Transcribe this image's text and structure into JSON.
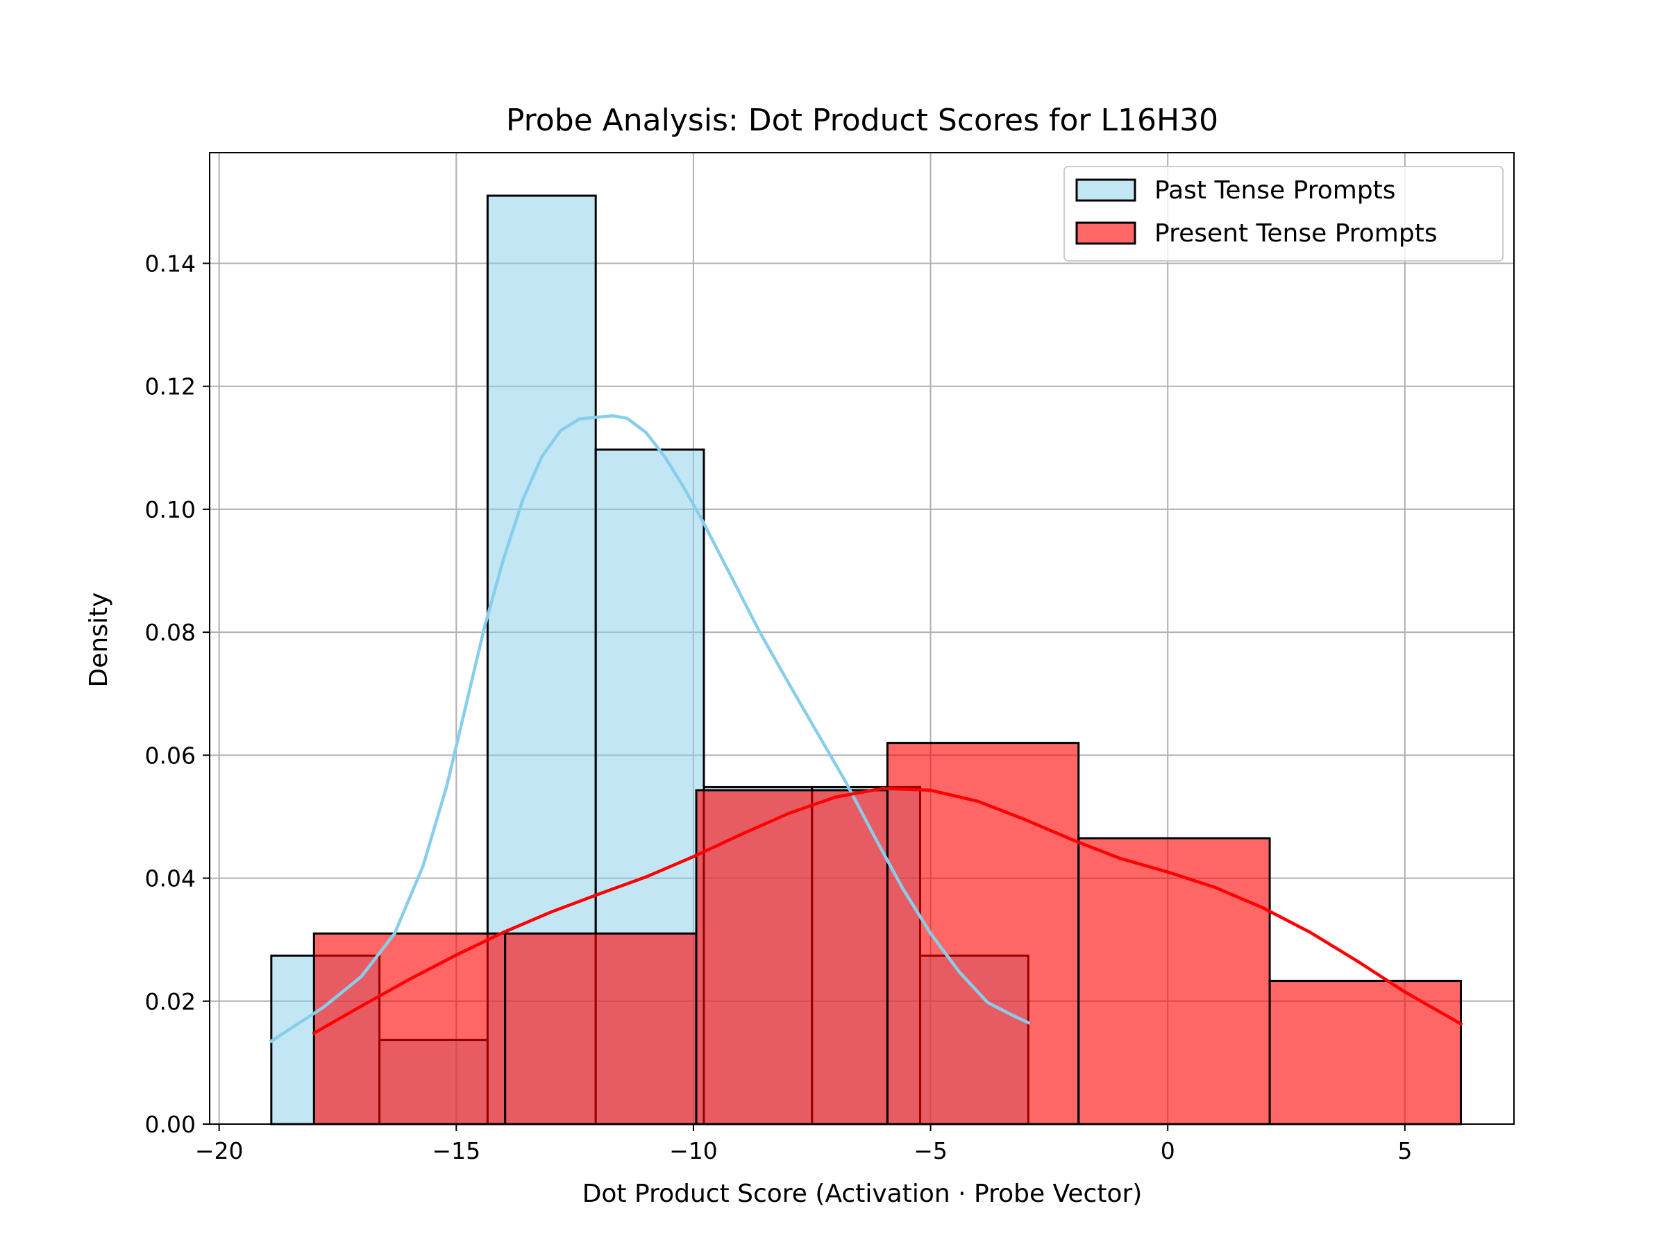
{
  "chart_data": {
    "type": "histogram",
    "title": "Probe Analysis: Dot Product Scores for L16H30",
    "xlabel": "Dot Product Score (Activation · Probe Vector)",
    "ylabel": "Density",
    "xlim": [
      -20.2,
      7.3
    ],
    "ylim": [
      0,
      0.158
    ],
    "xticks": [
      -20,
      -15,
      -10,
      -5,
      0,
      5
    ],
    "xtick_labels": [
      "−20",
      "−15",
      "−10",
      "−5",
      "0",
      "5"
    ],
    "yticks": [
      0,
      0.02,
      0.04,
      0.06,
      0.08,
      0.1,
      0.12,
      0.14
    ],
    "ytick_labels": [
      "0.00",
      "0.02",
      "0.04",
      "0.06",
      "0.08",
      "0.10",
      "0.12",
      "0.14"
    ],
    "grid": true,
    "legend_position": "top-right",
    "series": [
      {
        "name": "Past Tense Prompts",
        "fill_color": "#87ceeb",
        "fill_opacity": 0.5,
        "line_color": "#87ceeb",
        "bin_edges": [
          -18.9,
          -16.62,
          -14.34,
          -12.06,
          -9.78,
          -7.5,
          -5.22,
          -2.94
        ],
        "densities": [
          0.0274,
          0.0137,
          0.151,
          0.1097,
          0.0548,
          0.0548,
          0.0274
        ],
        "kde": {
          "x": [
            -18.9,
            -17.8,
            -17.0,
            -16.3,
            -15.7,
            -15.2,
            -14.8,
            -14.4,
            -14.0,
            -13.6,
            -13.2,
            -12.8,
            -12.4,
            -12.0,
            -11.7,
            -11.4,
            -11.0,
            -10.6,
            -10.2,
            -9.8,
            -9.2,
            -8.6,
            -8.0,
            -7.4,
            -6.8,
            -6.2,
            -5.6,
            -5.0,
            -4.4,
            -3.8,
            -3.3,
            -2.94
          ],
          "y": [
            0.0135,
            0.019,
            0.024,
            0.031,
            0.042,
            0.055,
            0.068,
            0.081,
            0.092,
            0.1015,
            0.1085,
            0.1128,
            0.1147,
            0.115,
            0.1152,
            0.1148,
            0.1125,
            0.1085,
            0.1035,
            0.098,
            0.089,
            0.08,
            0.0718,
            0.0638,
            0.0558,
            0.047,
            0.0385,
            0.031,
            0.0248,
            0.0198,
            0.0178,
            0.0165
          ]
        }
      },
      {
        "name": "Present Tense Prompts",
        "fill_color": "#ff0000",
        "fill_opacity": 0.6,
        "line_color": "#ff0000",
        "bin_edges": [
          -18.0,
          -13.97,
          -9.94,
          -5.91,
          -1.88,
          2.15,
          6.18
        ],
        "densities": [
          0.031,
          0.031,
          0.0543,
          0.062,
          0.0465,
          0.0233
        ],
        "kde": {
          "x": [
            -18.0,
            -17.0,
            -16.0,
            -15.0,
            -14.0,
            -13.0,
            -12.0,
            -11.0,
            -10.0,
            -9.0,
            -8.0,
            -7.0,
            -6.0,
            -5.0,
            -4.0,
            -3.0,
            -2.0,
            -1.0,
            0.0,
            1.0,
            2.0,
            3.0,
            4.0,
            5.0,
            6.18
          ],
          "y": [
            0.0148,
            0.0192,
            0.0235,
            0.0275,
            0.0312,
            0.0345,
            0.0374,
            0.0402,
            0.0435,
            0.0471,
            0.0505,
            0.0532,
            0.0546,
            0.0543,
            0.0525,
            0.0495,
            0.0462,
            0.0432,
            0.041,
            0.0385,
            0.0352,
            0.0312,
            0.0265,
            0.0215,
            0.0163
          ]
        }
      }
    ]
  }
}
